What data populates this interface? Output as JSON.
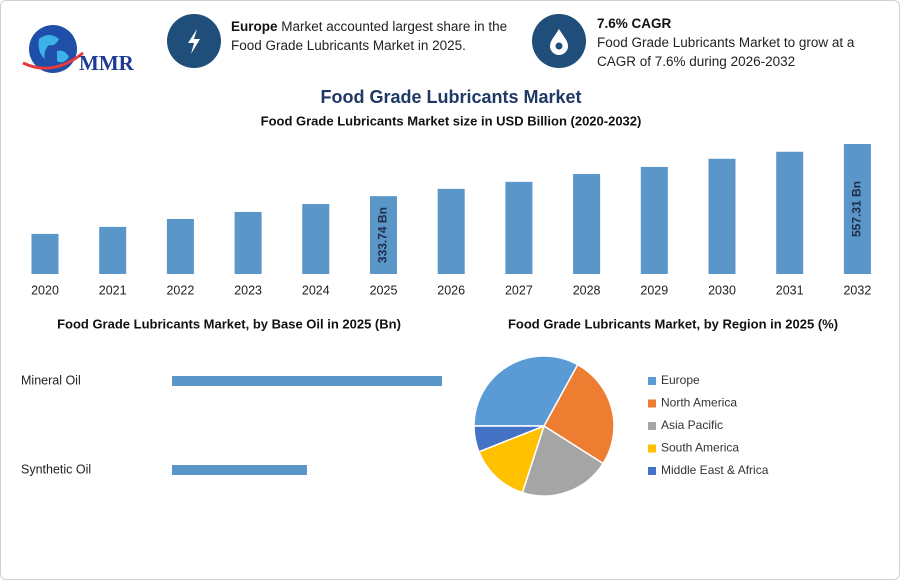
{
  "logo": "MMR",
  "highlights": [
    {
      "bold": "Europe",
      "text": "Market accounted largest share in the Food Grade Lubricants Market in 2025."
    },
    {
      "bold": "7.6% CAGR",
      "text": "Food Grade Lubricants Market to grow at a CAGR of 7.6% during 2026-2032"
    }
  ],
  "chart_data": [
    {
      "type": "bar",
      "title": "Food Grade Lubricants Market",
      "subtitle": "Food Grade Lubricants Market size in USD Billion (2020-2032)",
      "categories": [
        "2020",
        "2021",
        "2022",
        "2023",
        "2024",
        "2025",
        "2026",
        "2027",
        "2028",
        "2029",
        "2030",
        "2031",
        "2032"
      ],
      "values": [
        172,
        202,
        236,
        266,
        300,
        333.74,
        365,
        395,
        429,
        459,
        494,
        524,
        557.31
      ],
      "value_labels": [
        null,
        null,
        null,
        null,
        null,
        "333.74 Bn",
        null,
        null,
        null,
        null,
        null,
        null,
        "557.31 Bn"
      ],
      "color": "#5b96c8"
    },
    {
      "type": "hbar",
      "title": "Food Grade Lubricants Market, by Base Oil in 2025 (Bn)",
      "categories": [
        "Mineral Oil",
        "Synthetic Oil"
      ],
      "values": [
        222,
        111
      ],
      "color": "#5b96c8"
    },
    {
      "type": "pie",
      "title": "Food Grade Lubricants Market, by Region in 2025 (%)",
      "categories": [
        "Europe",
        "North America",
        "Asia Pacific",
        "South America",
        "Middle East & Africa"
      ],
      "values": [
        33,
        26,
        21,
        14,
        6
      ],
      "colors": [
        "#5b9bd5",
        "#ed7d31",
        "#a5a5a5",
        "#ffc000",
        "#4472c4"
      ]
    }
  ]
}
